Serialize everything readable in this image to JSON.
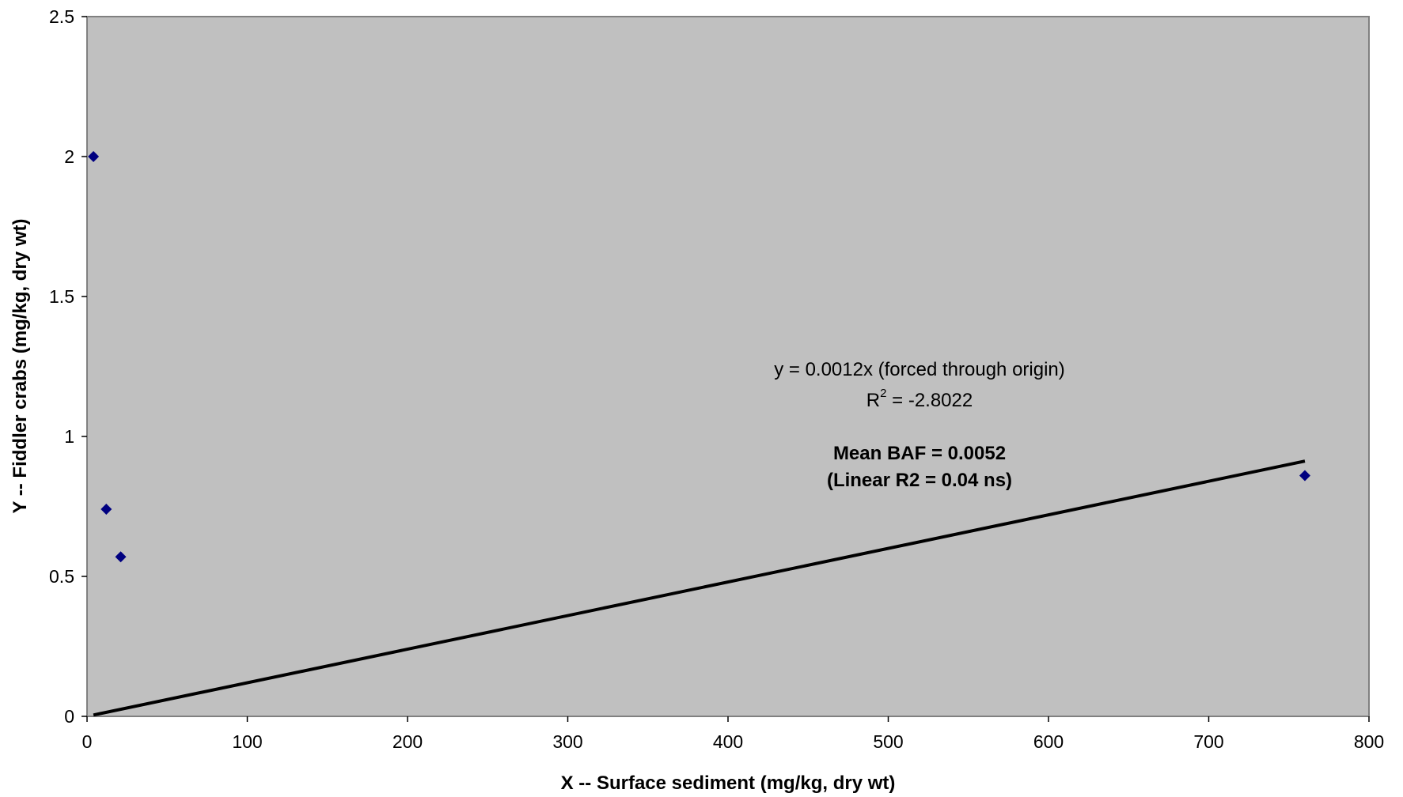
{
  "chart_data": {
    "type": "scatter",
    "title": "",
    "xlabel": "X -- Surface sediment (mg/kg, dry wt)",
    "ylabel": "Y -- Fiddler crabs (mg/kg, dry wt)",
    "xlim": [
      0,
      800
    ],
    "ylim": [
      0,
      2.5
    ],
    "x_ticks": [
      "0",
      "100",
      "200",
      "300",
      "400",
      "500",
      "600",
      "700",
      "800"
    ],
    "y_ticks": [
      "0",
      "0.5",
      "1",
      "1.5",
      "2",
      "2.5"
    ],
    "grid": false,
    "legend": "none",
    "plot_background": "#c0c0c0",
    "marker_color": "#000080",
    "series": [
      {
        "marker": "diamond",
        "points": [
          {
            "x": 4,
            "y": 2.0
          },
          {
            "x": 12,
            "y": 0.74
          },
          {
            "x": 21,
            "y": 0.57
          },
          {
            "x": 760,
            "y": 0.86
          }
        ]
      }
    ],
    "trendline": {
      "slope": 0.0012,
      "intercept": 0,
      "x_range": [
        4,
        760
      ],
      "color": "#000000"
    },
    "annotations": {
      "equation": "y = 0.0012x (forced through origin)",
      "r2_base": "R",
      "r2_sup": "2",
      "r2_value": " = -2.8022",
      "mean_baf": "Mean BAF = 0.0052",
      "linear_r2": "(Linear R2 = 0.04 ns)"
    }
  }
}
